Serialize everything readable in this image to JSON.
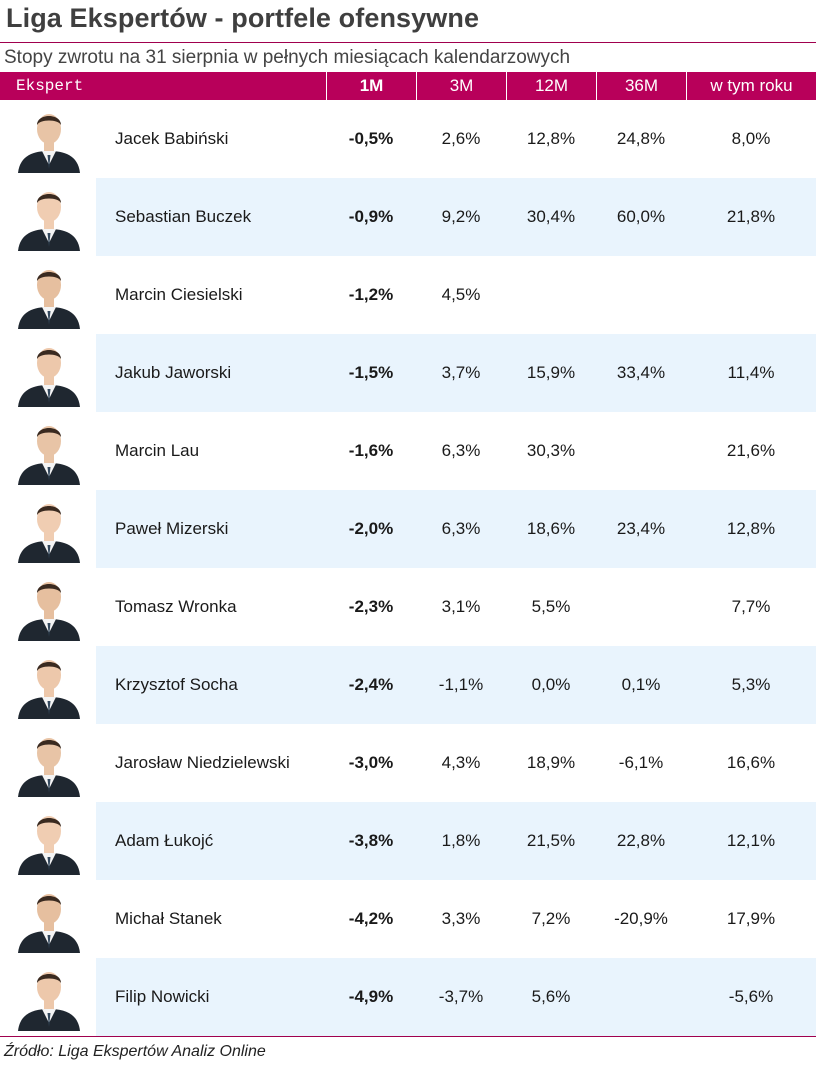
{
  "title": "Liga Ekspertów - portfele ofensywne",
  "subtitle": "Stopy zwrotu na 31 sierpnia w pełnych miesiącach kalendarzowych",
  "colors": {
    "header_bg": "#b8005a",
    "alt_row_bg": "#e9f4fd",
    "rule": "#a0004e"
  },
  "columns": [
    "Ekspert",
    "1M",
    "3M",
    "12M",
    "36M",
    "w tym roku"
  ],
  "rows": [
    {
      "name": "Jacek Babiński",
      "m1": "-0,5%",
      "m3": "2,6%",
      "m12": "12,8%",
      "m36": "24,8%",
      "ytd": "8,0%"
    },
    {
      "name": "Sebastian Buczek",
      "m1": "-0,9%",
      "m3": "9,2%",
      "m12": "30,4%",
      "m36": "60,0%",
      "ytd": "21,8%"
    },
    {
      "name": "Marcin Ciesielski",
      "m1": "-1,2%",
      "m3": "4,5%",
      "m12": "",
      "m36": "",
      "ytd": ""
    },
    {
      "name": "Jakub Jaworski",
      "m1": "-1,5%",
      "m3": "3,7%",
      "m12": "15,9%",
      "m36": "33,4%",
      "ytd": "11,4%"
    },
    {
      "name": "Marcin Lau",
      "m1": "-1,6%",
      "m3": "6,3%",
      "m12": "30,3%",
      "m36": "",
      "ytd": "21,6%"
    },
    {
      "name": "Paweł Mizerski",
      "m1": "-2,0%",
      "m3": "6,3%",
      "m12": "18,6%",
      "m36": "23,4%",
      "ytd": "12,8%"
    },
    {
      "name": "Tomasz Wronka",
      "m1": "-2,3%",
      "m3": "3,1%",
      "m12": "5,5%",
      "m36": "",
      "ytd": "7,7%"
    },
    {
      "name": "Krzysztof Socha",
      "m1": "-2,4%",
      "m3": "-1,1%",
      "m12": "0,0%",
      "m36": "0,1%",
      "ytd": "5,3%"
    },
    {
      "name": "Jarosław Niedzielewski",
      "m1": "-3,0%",
      "m3": "4,3%",
      "m12": "18,9%",
      "m36": "-6,1%",
      "ytd": "16,6%"
    },
    {
      "name": "Adam Łukojć",
      "m1": "-3,8%",
      "m3": "1,8%",
      "m12": "21,5%",
      "m36": "22,8%",
      "ytd": "12,1%"
    },
    {
      "name": "Michał Stanek",
      "m1": "-4,2%",
      "m3": "3,3%",
      "m12": "7,2%",
      "m36": "-20,9%",
      "ytd": "17,9%"
    },
    {
      "name": "Filip Nowicki",
      "m1": "-4,9%",
      "m3": "-3,7%",
      "m12": "5,6%",
      "m36": "",
      "ytd": "-5,6%"
    }
  ],
  "source": "Źródło: Liga Ekspertów Analiz Online"
}
